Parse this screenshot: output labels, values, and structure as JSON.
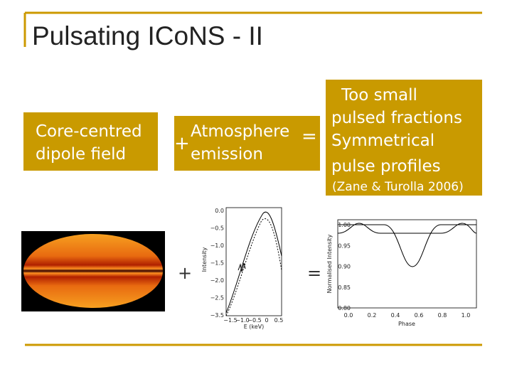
{
  "title": "Pulsating ICoNS - II",
  "left_box": {
    "lines": [
      "Core-centred",
      "dipole field"
    ]
  },
  "middle_box": {
    "lines": [
      "Atmosphere",
      "emission"
    ]
  },
  "result_box": {
    "lines": [
      "Too small",
      "pulsed fractions",
      "Symmetrical",
      "pulse profiles"
    ],
    "citation": "(Zane & Turolla 2006)"
  },
  "operators": {
    "top_plus": "+",
    "top_equals": "=",
    "bottom_plus": "+",
    "bottom_equals": "="
  },
  "spectrum_plot": {
    "ylabel": "Intensity",
    "xlabel": "E (keV)",
    "yticks": [
      "0.0",
      "−0.5",
      "−1.0",
      "−1.5",
      "−2.0",
      "−2.5",
      "−3.5"
    ],
    "xticks": [
      "−1.5",
      "−1.0",
      "−0.5",
      "0",
      "0.5"
    ]
  },
  "profile_plot": {
    "ylabel": "Normalised Intensity",
    "xlabel": "Phase",
    "yticks": [
      "1.00",
      "0.95",
      "0.90",
      "0.85",
      "0.80"
    ],
    "xticks": [
      "0.0",
      "0.2",
      "0.4",
      "0.6",
      "0.8",
      "1.0"
    ]
  }
}
